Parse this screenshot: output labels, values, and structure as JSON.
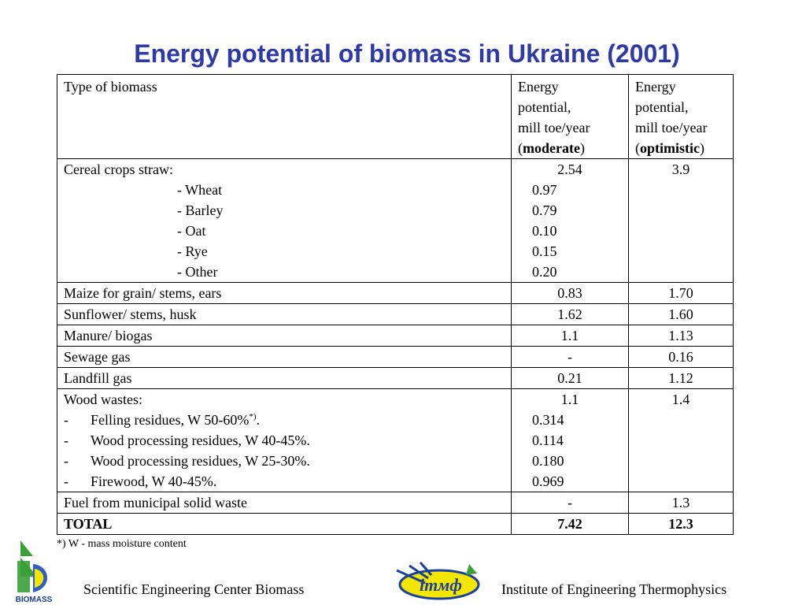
{
  "title": "Energy potential of biomass in Ukraine (2001)",
  "table": {
    "headers": {
      "type": "Type of biomass",
      "moderate_lines": [
        "Energy",
        "potential,",
        "mill toe/year"
      ],
      "moderate_tag": "moderate",
      "optimistic_lines": [
        "Energy",
        "potential,",
        "mill toe/year"
      ],
      "optimistic_tag": "optimistic"
    },
    "cereal": {
      "label": "Cereal crops straw:",
      "moderate": "2.54",
      "optimistic": "3.9",
      "subs": [
        {
          "name": "- Wheat",
          "value": "0.97"
        },
        {
          "name": "- Barley",
          "value": "0.79"
        },
        {
          "name": "- Oat",
          "value": "0.10"
        },
        {
          "name": "- Rye",
          "value": "0.15"
        },
        {
          "name": "- Other",
          "value": "0.20"
        }
      ]
    },
    "rows": [
      {
        "label": "Maize for grain/ stems, ears",
        "moderate": "0.83",
        "optimistic": "1.70"
      },
      {
        "label": "Sunflower/ stems, husk",
        "moderate": "1.62",
        "optimistic": "1.60"
      },
      {
        "label": "Manure/ biogas",
        "moderate": "1.1",
        "optimistic": "1.13"
      },
      {
        "label": "Sewage gas",
        "moderate": "-",
        "optimistic": "0.16"
      },
      {
        "label": "Landfill gas",
        "moderate": "0.21",
        "optimistic": "1.12"
      }
    ],
    "wood": {
      "label": "Wood wastes:",
      "moderate": "1.1",
      "optimistic": "1.4",
      "subs": [
        {
          "name": "Felling residues, W 50-60%",
          "sup": "*)",
          "after": ".",
          "value": "0.314"
        },
        {
          "name": "Wood processing residues,  W 40-45%.",
          "sup": "",
          "after": "",
          "value": "0.114"
        },
        {
          "name": "Wood processing residues,  W 25-30%.",
          "sup": "",
          "after": "",
          "value": "0.180"
        },
        {
          "name": "Firewood, W 40-45%.",
          "sup": "",
          "after": "",
          "value": "0.969"
        }
      ]
    },
    "msw": {
      "label": "Fuel from municipal solid waste",
      "moderate": "-",
      "optimistic": "1.3"
    },
    "total": {
      "label": "TOTAL",
      "moderate": "7.42",
      "optimistic": "12.3"
    }
  },
  "footnote": "*) W - mass moisture content",
  "footer": {
    "left": "Scientific Engineering Center Biomass",
    "right": "Institute of Engineering Thermophysics",
    "logo_left_text": "BIOMASS",
    "logo_mid_text": "ітмф"
  },
  "colors": {
    "title": "#2e3aa8",
    "logo_green": "#3aa037",
    "logo_blue": "#2f5fc4",
    "logo_yellow": "#f3e600"
  }
}
